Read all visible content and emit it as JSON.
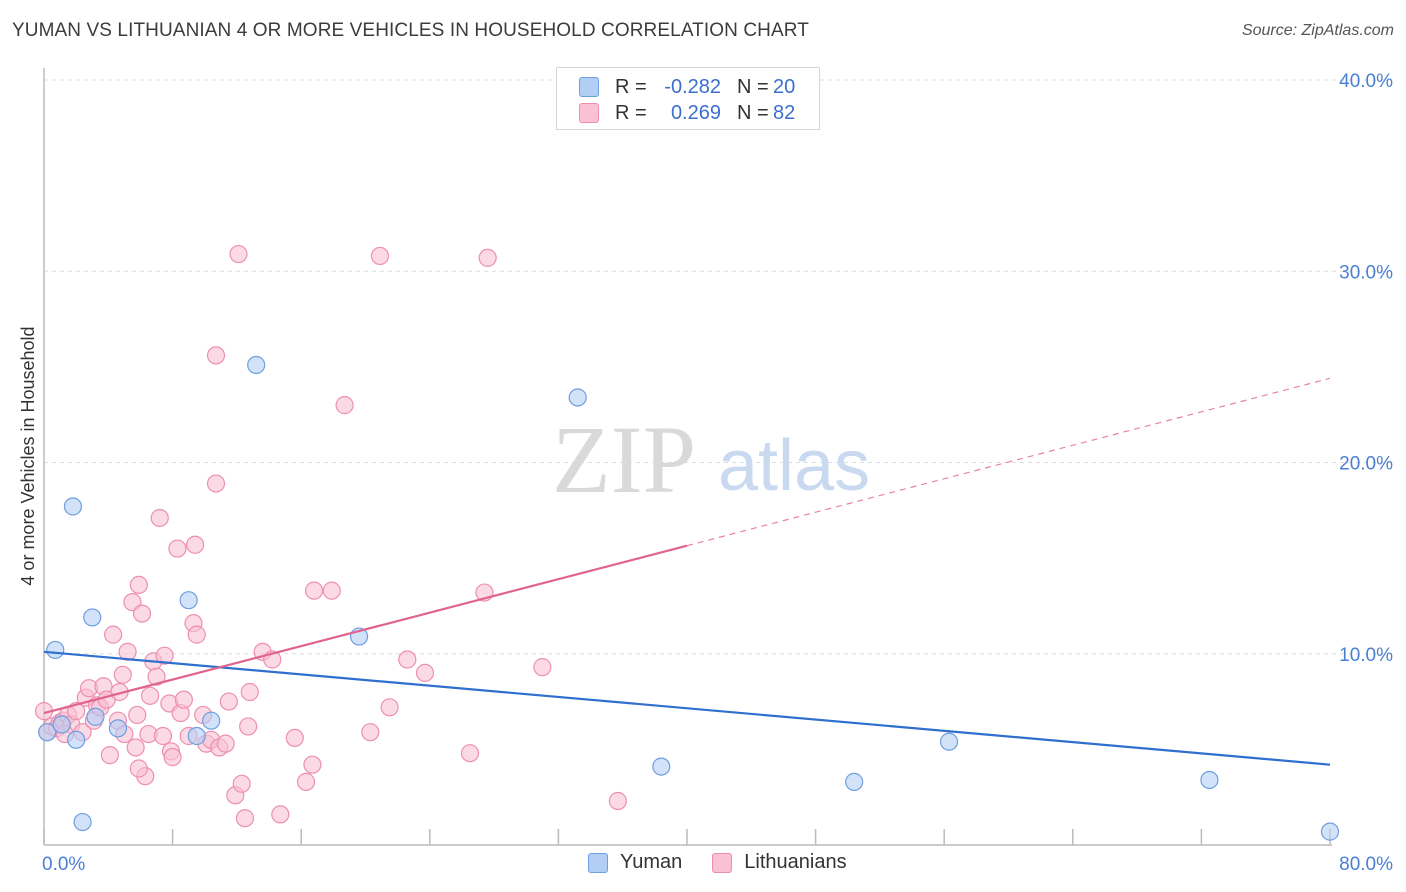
{
  "title": "YUMAN VS LITHUANIAN 4 OR MORE VEHICLES IN HOUSEHOLD CORRELATION CHART",
  "source": "Source: ZipAtlas.com",
  "watermark": {
    "zip": "ZIP",
    "atlas": "atlas"
  },
  "legend_top": [
    {
      "label": "R =",
      "r": "-0.282",
      "n_label": "N =",
      "n": "20"
    },
    {
      "label": "R =",
      "r": "0.269",
      "n_label": "N =",
      "n": "82"
    }
  ],
  "colors": {
    "yuman_fill": "#b3cef5",
    "yuman_stroke": "#6f9fe0",
    "yuman_line": "#2f6fce",
    "lith_fill": "#f9c1d3",
    "lith_stroke": "#ee8fb0",
    "lith_line": "#e0648f",
    "grid": "#dddddd",
    "tick_label": "#4a7fd4"
  },
  "chart_data": {
    "type": "scatter",
    "title": "YUMAN VS LITHUANIAN 4 OR MORE VEHICLES IN HOUSEHOLD CORRELATION CHART",
    "xlabel": "",
    "ylabel": "4 or more Vehicles in Household",
    "xlim": [
      0,
      80
    ],
    "ylim": [
      0,
      40
    ],
    "x_tick_labels": [
      "0.0%",
      "80.0%"
    ],
    "y_ticks": [
      10,
      20,
      30,
      40
    ],
    "y_tick_labels": [
      "10.0%",
      "20.0%",
      "30.0%",
      "40.0%"
    ],
    "legend": [
      "Yuman",
      "Lithuanians"
    ],
    "series": [
      {
        "name": "Yuman",
        "r": -0.282,
        "n": 20,
        "points": [
          [
            0.7,
            10.2
          ],
          [
            1.8,
            17.7
          ],
          [
            3.0,
            11.9
          ],
          [
            2.0,
            5.5
          ],
          [
            2.4,
            1.2
          ],
          [
            3.2,
            6.7
          ],
          [
            4.6,
            6.1
          ],
          [
            9.0,
            12.8
          ],
          [
            13.2,
            25.1
          ],
          [
            9.5,
            5.7
          ],
          [
            10.4,
            6.5
          ],
          [
            19.6,
            10.9
          ],
          [
            33.2,
            23.4
          ],
          [
            38.4,
            4.1
          ],
          [
            50.4,
            3.3
          ],
          [
            56.3,
            5.4
          ],
          [
            72.5,
            3.4
          ],
          [
            80.0,
            0.7
          ],
          [
            0.2,
            5.9
          ],
          [
            1.1,
            6.3
          ]
        ],
        "trend": {
          "x": [
            0,
            80
          ],
          "y": [
            10.1,
            4.2
          ],
          "dashed_from": null
        }
      },
      {
        "name": "Lithuanians",
        "r": 0.269,
        "n": 82,
        "points": [
          [
            0.0,
            7.0
          ],
          [
            0.2,
            5.9
          ],
          [
            0.5,
            6.2
          ],
          [
            0.8,
            6.1
          ],
          [
            1.0,
            6.4
          ],
          [
            1.2,
            6.5
          ],
          [
            1.5,
            6.8
          ],
          [
            1.7,
            6.3
          ],
          [
            2.0,
            7.0
          ],
          [
            2.4,
            5.9
          ],
          [
            2.6,
            7.7
          ],
          [
            2.8,
            8.2
          ],
          [
            3.1,
            6.5
          ],
          [
            3.3,
            7.3
          ],
          [
            3.5,
            7.2
          ],
          [
            3.7,
            8.3
          ],
          [
            3.9,
            7.6
          ],
          [
            4.1,
            4.7
          ],
          [
            4.3,
            11.0
          ],
          [
            4.6,
            6.5
          ],
          [
            4.7,
            8.0
          ],
          [
            4.9,
            8.9
          ],
          [
            5.0,
            5.8
          ],
          [
            5.2,
            10.1
          ],
          [
            5.5,
            12.7
          ],
          [
            5.7,
            5.1
          ],
          [
            5.8,
            6.8
          ],
          [
            5.9,
            13.6
          ],
          [
            6.1,
            12.1
          ],
          [
            6.3,
            3.6
          ],
          [
            6.5,
            5.8
          ],
          [
            6.6,
            7.8
          ],
          [
            6.8,
            9.6
          ],
          [
            7.0,
            8.8
          ],
          [
            7.2,
            17.1
          ],
          [
            7.4,
            5.7
          ],
          [
            7.5,
            9.9
          ],
          [
            7.8,
            7.4
          ],
          [
            7.9,
            4.9
          ],
          [
            8.0,
            4.6
          ],
          [
            8.3,
            15.5
          ],
          [
            8.5,
            6.9
          ],
          [
            8.7,
            7.6
          ],
          [
            9.0,
            5.7
          ],
          [
            9.3,
            11.6
          ],
          [
            9.4,
            15.7
          ],
          [
            9.5,
            11.0
          ],
          [
            9.9,
            6.8
          ],
          [
            10.1,
            5.3
          ],
          [
            10.4,
            5.5
          ],
          [
            10.7,
            18.9
          ],
          [
            10.9,
            5.1
          ],
          [
            11.3,
            5.3
          ],
          [
            11.5,
            7.5
          ],
          [
            12.1,
            30.9
          ],
          [
            11.9,
            2.6
          ],
          [
            12.5,
            1.4
          ],
          [
            12.7,
            6.2
          ],
          [
            12.8,
            8.0
          ],
          [
            13.6,
            10.1
          ],
          [
            14.2,
            9.7
          ],
          [
            14.7,
            1.6
          ],
          [
            15.6,
            5.6
          ],
          [
            16.3,
            3.3
          ],
          [
            16.8,
            13.3
          ],
          [
            16.7,
            4.2
          ],
          [
            17.9,
            13.3
          ],
          [
            18.7,
            23.0
          ],
          [
            20.3,
            5.9
          ],
          [
            20.9,
            30.8
          ],
          [
            21.5,
            7.2
          ],
          [
            22.6,
            9.7
          ],
          [
            23.7,
            9.0
          ],
          [
            10.7,
            25.6
          ],
          [
            12.3,
            3.2
          ],
          [
            26.5,
            4.8
          ],
          [
            27.4,
            13.2
          ],
          [
            27.6,
            30.7
          ],
          [
            31.0,
            9.3
          ],
          [
            35.7,
            2.3
          ],
          [
            5.9,
            4.0
          ],
          [
            1.3,
            5.8
          ]
        ],
        "trend": {
          "x": [
            0,
            80
          ],
          "y": [
            6.9,
            24.4
          ],
          "solid_until_x": 40
        }
      }
    ]
  }
}
